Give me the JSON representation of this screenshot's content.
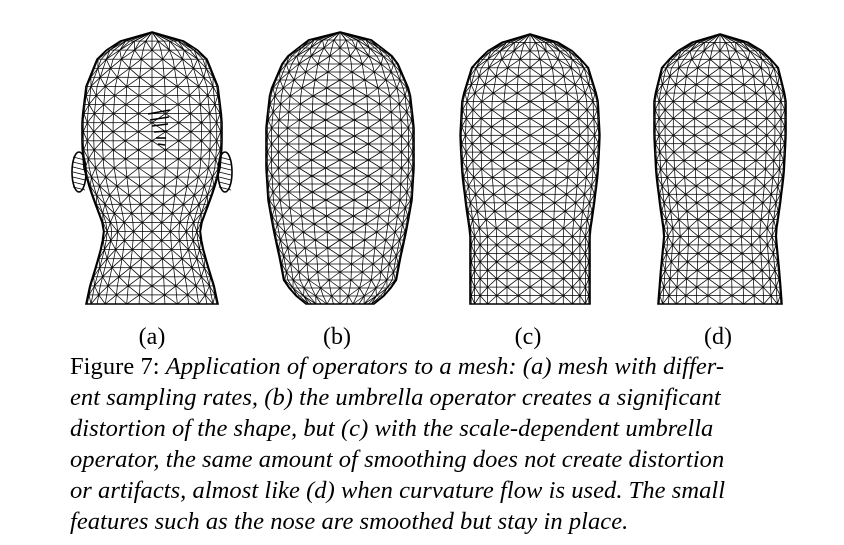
{
  "figure": {
    "panels": [
      {
        "label": "(a)",
        "mesh": "head mesh with different sampling rates"
      },
      {
        "label": "(b)",
        "mesh": "head mesh distorted by umbrella operator"
      },
      {
        "label": "(c)",
        "mesh": "head mesh smoothed with scale-dependent umbrella operator"
      },
      {
        "label": "(d)",
        "mesh": "head mesh smoothed with curvature flow"
      }
    ],
    "caption": {
      "prefix": "Figure 7: ",
      "lines": [
        "Application of operators to a mesh: (a) mesh with differ-",
        "ent sampling rates, (b) the umbrella operator creates a significant",
        "distortion of the shape, but (c) with the scale-dependent umbrella",
        "operator, the same amount of smoothing does not create distortion",
        "or artifacts, almost like (d) when curvature flow is used. The small",
        "features such as the nose are smoothed but stay in place."
      ]
    }
  }
}
